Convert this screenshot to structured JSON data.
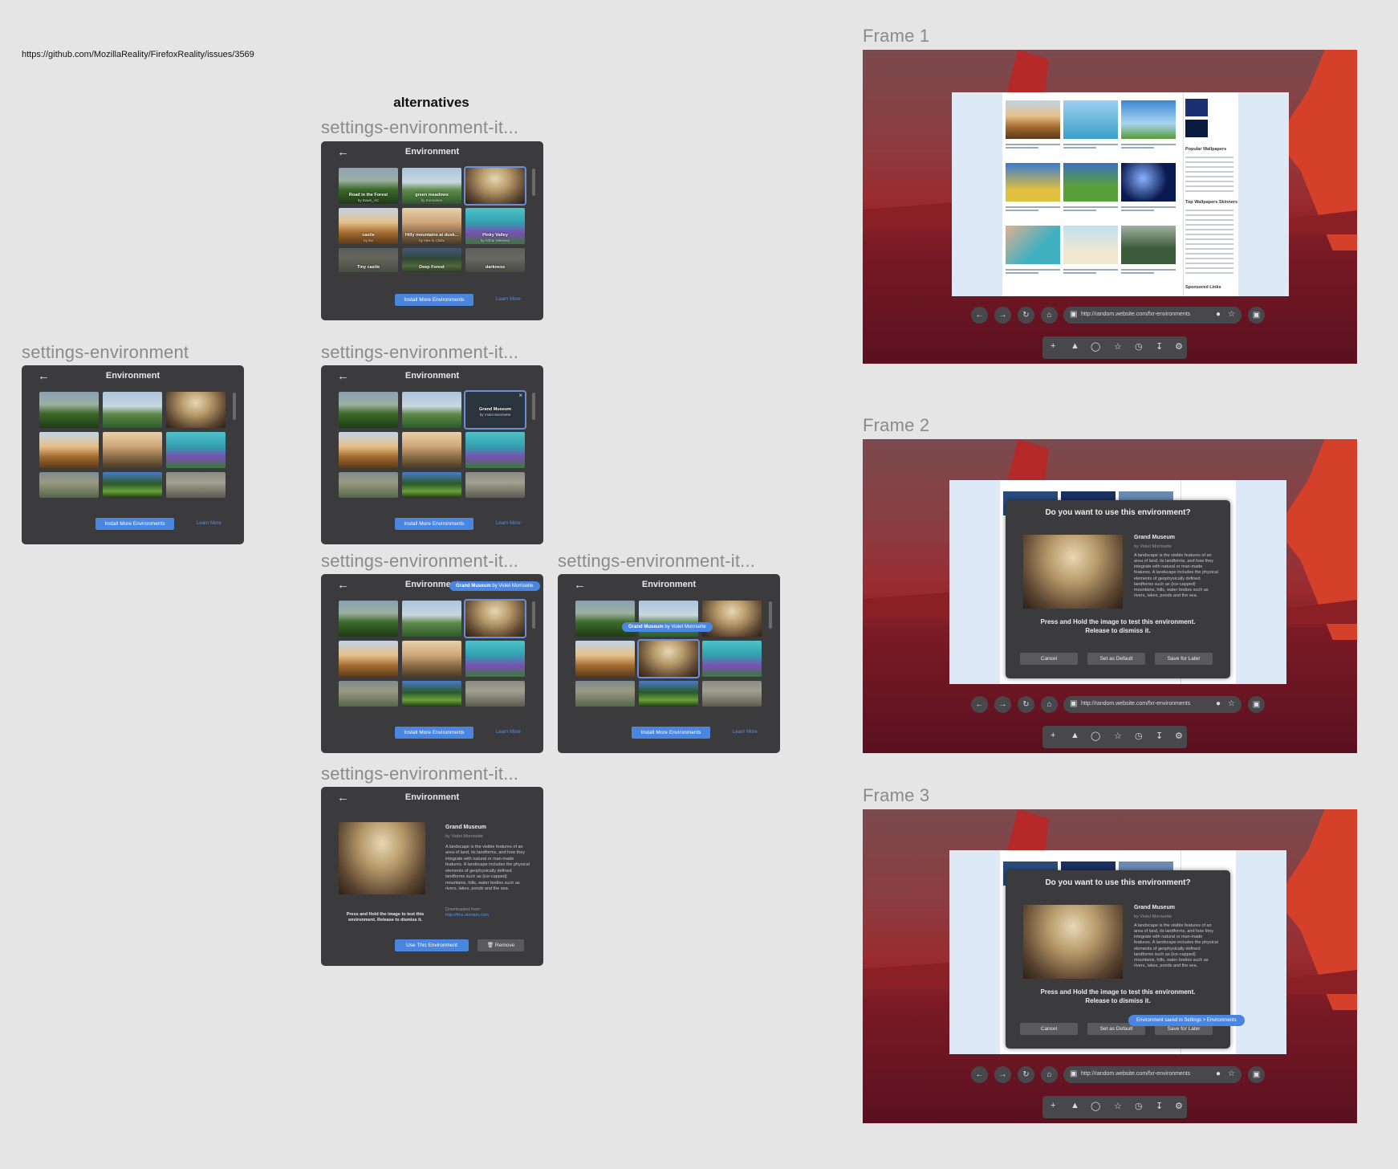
{
  "issue_url": "https://github.com/MozillaReality/FirefoxReality/issues/3569",
  "alternatives_heading": "alternatives",
  "component_labels": {
    "environment": "settings-environment",
    "item_truncated": "settings-environment-it..."
  },
  "panel": {
    "title": "Environment",
    "back_icon": "arrow-left-icon",
    "install_button": "Install More Environments",
    "learn_more": "Learn More"
  },
  "thumbnails": [
    {
      "name": "Road in the Forest",
      "author": "by Dawn_AC"
    },
    {
      "name": "green meadows",
      "author": "by Kornamen"
    },
    {
      "name": "Grand Museum",
      "author": "by Violet Morrisette"
    },
    {
      "name": "castle",
      "author": "by lev"
    },
    {
      "name": "Hilly mountains at dusk...",
      "author": "by Alex in Chiitv"
    },
    {
      "name": "Pinky Valley",
      "author": "by Arthur Meverey"
    },
    {
      "name": "Tiny castle",
      "author": ""
    },
    {
      "name": "Deep Forest",
      "author": ""
    },
    {
      "name": "darkness",
      "author": ""
    }
  ],
  "tooltip": {
    "name": "Grand Museum",
    "author": " by Violet Morrisette"
  },
  "detail": {
    "name": "Grand Museum",
    "author": "by Violet Morrisette",
    "description": "A landscape is the visible features of an area of land, its landforms, and how they integrate with natural or man-made features. A landscape includes the physical elements of geophysically defined landforms such as (ice-capped) mountains, hills, water bodies such as rivers, lakes, ponds and the sea.",
    "downloaded_label": "Downloaded from:",
    "downloaded_url": "http://this.domain.com",
    "press_hint": "Press and Hold the image to test this environment. Release to dismiss it.",
    "use_button": "Use This Environment",
    "remove_button": "Remove"
  },
  "frames": {
    "labels": [
      "Frame 1",
      "Frame 2",
      "Frame 3"
    ],
    "url": "http://random.website.com/fxr-environments",
    "sidebar_headings": [
      "Popular Wallpapers",
      "Top Wallpapers Skinners",
      "Sponsored Links"
    ],
    "dialog": {
      "question": "Do you want to use this environment?",
      "press_hint_1": "Press and Hold the image to test this environment.",
      "press_hint_2": "Release to dismiss it.",
      "cancel": "Cancel",
      "set_default": "Set as Default",
      "save_later": "Save for Later"
    },
    "toast": "Environment saved in Settings > Environments"
  },
  "colors": {
    "accent": "#4a86e0",
    "panel_bg": "#3b3b3d",
    "canvas_bg": "#e5e5e5"
  }
}
